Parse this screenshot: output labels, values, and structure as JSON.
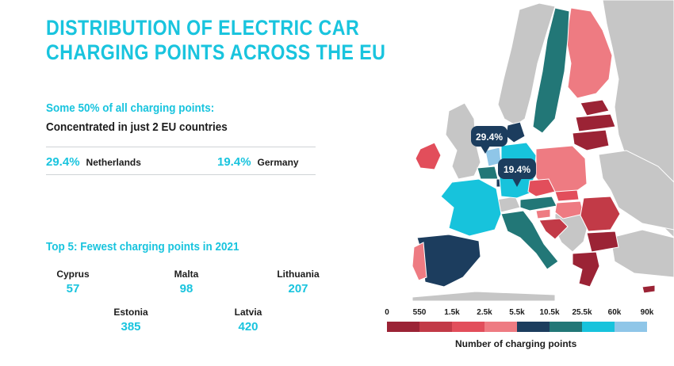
{
  "title": {
    "line1": "DISTRIBUTION OF ELECTRIC CAR",
    "line2": "CHARGING POINTS ACROSS THE EU"
  },
  "concentration": {
    "subtitle": "Some 50% of all charging points:",
    "headline": "Concentrated in just 2 EU countries",
    "stats": [
      {
        "value": "29.4%",
        "country": "Netherlands"
      },
      {
        "value": "19.4%",
        "country": "Germany"
      }
    ]
  },
  "fewest": {
    "title": "Top 5: Fewest charging points in 2021",
    "items": [
      {
        "country": "Cyprus",
        "value": "57"
      },
      {
        "country": "Malta",
        "value": "98"
      },
      {
        "country": "Lithuania",
        "value": "207"
      },
      {
        "country": "Estonia",
        "value": "385"
      },
      {
        "country": "Latvia",
        "value": "420"
      }
    ]
  },
  "map": {
    "callouts": [
      {
        "country": "Netherlands",
        "label": "29.4%"
      },
      {
        "country": "Germany",
        "label": "19.4%"
      }
    ],
    "colors": {
      "sea": "#ffffff",
      "non_eu": "#c6c6c6",
      "border": "#ffffff"
    },
    "country_bins": [
      {
        "country": "Cyprus",
        "bin": 0
      },
      {
        "country": "Estonia",
        "bin": 0
      },
      {
        "country": "Latvia",
        "bin": 0
      },
      {
        "country": "Lithuania",
        "bin": 0
      },
      {
        "country": "Greece",
        "bin": 0
      },
      {
        "country": "Bulgaria",
        "bin": 0
      },
      {
        "country": "Romania",
        "bin": 1
      },
      {
        "country": "Croatia",
        "bin": 1
      },
      {
        "country": "Slovakia",
        "bin": 2
      },
      {
        "country": "Ireland",
        "bin": 2
      },
      {
        "country": "Czech Republic",
        "bin": 2
      },
      {
        "country": "Poland",
        "bin": 3
      },
      {
        "country": "Hungary",
        "bin": 3
      },
      {
        "country": "Finland",
        "bin": 3
      },
      {
        "country": "Slovenia",
        "bin": 3
      },
      {
        "country": "Portugal",
        "bin": 3
      },
      {
        "country": "Luxembourg",
        "bin": 4
      },
      {
        "country": "Denmark",
        "bin": 4
      },
      {
        "country": "Spain",
        "bin": 4
      },
      {
        "country": "Austria",
        "bin": 5
      },
      {
        "country": "Sweden",
        "bin": 5
      },
      {
        "country": "Italy",
        "bin": 5
      },
      {
        "country": "Belgium",
        "bin": 5
      },
      {
        "country": "France",
        "bin": 6
      },
      {
        "country": "Germany",
        "bin": 6
      },
      {
        "country": "Netherlands",
        "bin": 7
      }
    ]
  },
  "legend": {
    "title": "Number of charging points",
    "ticks": [
      "0",
      "550",
      "1.5k",
      "2.5k",
      "5.5k",
      "10.5k",
      "25.5k",
      "60k",
      "90k"
    ],
    "colors": [
      "#9b2335",
      "#c23a47",
      "#e24e5b",
      "#ee7b82",
      "#1c3d5e",
      "#227777",
      "#17c3dc",
      "#8fc6e8"
    ]
  }
}
